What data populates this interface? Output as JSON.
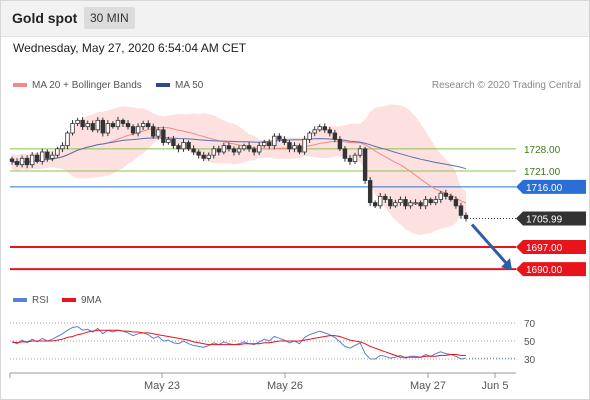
{
  "header": {
    "title": "Gold spot",
    "timeframe": "30 MIN",
    "timestamp": "Wednesday, May 27, 2020 6:54:04 AM CET"
  },
  "legend": {
    "ma20_label": "MA 20 + Bollinger Bands",
    "ma50_label": "MA 50",
    "rsi_label": "RSI",
    "ma9_label": "9MA",
    "copyright": "Research © 2020 Trading Central"
  },
  "colors": {
    "candle": "#333333",
    "bollinger_fill": "#fcd5d5",
    "ma20": "#f08a8a",
    "ma50": "#5b6fa8",
    "green_level": "#8bc34a",
    "blue_level": "#2b6fd6",
    "red_level": "#e8141b",
    "current": "#333333",
    "rsi": "#5b7fd6",
    "rsi_ma": "#e8141b",
    "arrow": "#2a5ea8"
  },
  "chart_data": {
    "type": "candlestick",
    "price_ylim": [
      1685,
      1745
    ],
    "x_ticks": [
      "May 23",
      "May 26",
      "May 27",
      "Jun 5"
    ],
    "levels": [
      {
        "value": 1728.0,
        "label": "1728.00",
        "kind": "resistance-green"
      },
      {
        "value": 1721.0,
        "label": "1721.00",
        "kind": "resistance-green"
      },
      {
        "value": 1716.0,
        "label": "1716.00",
        "kind": "pivot-blue"
      },
      {
        "value": 1697.0,
        "label": "1697.00",
        "kind": "target-red"
      },
      {
        "value": 1690.0,
        "label": "1690.00",
        "kind": "target-red"
      }
    ],
    "current_price": {
      "value": 1705.99,
      "label": "1705.99"
    },
    "forecast_arrow": {
      "from": 1705.99,
      "to": 1690.0
    },
    "close": [
      1724,
      1723,
      1725,
      1723,
      1726,
      1724,
      1727,
      1725,
      1726,
      1728,
      1729,
      1733,
      1736,
      1737,
      1735,
      1736,
      1734,
      1737,
      1733,
      1736,
      1735,
      1737,
      1736,
      1735,
      1733,
      1735,
      1736,
      1735,
      1732,
      1734,
      1730,
      1731,
      1729,
      1728,
      1730,
      1728,
      1727,
      1726,
      1725,
      1726,
      1728,
      1727,
      1729,
      1728,
      1727,
      1728,
      1729,
      1728,
      1727,
      1729,
      1730,
      1729,
      1732,
      1731,
      1730,
      1728,
      1729,
      1727,
      1731,
      1733,
      1734,
      1735,
      1734,
      1733,
      1731,
      1728,
      1725,
      1724,
      1726,
      1728,
      1718,
      1711,
      1710,
      1713,
      1712,
      1710,
      1711,
      1712,
      1710,
      1711,
      1711,
      1710,
      1712,
      1711,
      1712,
      1714,
      1713,
      1712,
      1710,
      1707,
      1706
    ],
    "rsi": {
      "ylim": [
        25,
        75
      ],
      "levels": [
        70,
        50,
        30
      ],
      "values": [
        49,
        47,
        51,
        48,
        52,
        49,
        53,
        50,
        52,
        55,
        58,
        62,
        65,
        66,
        62,
        63,
        60,
        64,
        58,
        62,
        60,
        62,
        61,
        59,
        56,
        58,
        59,
        57,
        53,
        55,
        50,
        51,
        48,
        47,
        50,
        47,
        45,
        44,
        43,
        45,
        48,
        46,
        49,
        47,
        46,
        47,
        49,
        47,
        46,
        49,
        52,
        50,
        55,
        53,
        51,
        48,
        50,
        47,
        54,
        57,
        59,
        61,
        59,
        57,
        54,
        49,
        44,
        42,
        45,
        48,
        36,
        30,
        30,
        34,
        33,
        31,
        32,
        34,
        31,
        33,
        33,
        32,
        35,
        33,
        36,
        38,
        36,
        35,
        33,
        30,
        31
      ],
      "ma9": [
        49,
        48,
        49,
        49,
        50,
        50,
        50,
        50,
        50,
        51,
        52,
        54,
        55,
        57,
        58,
        60,
        61,
        62,
        62,
        62,
        62,
        62,
        61,
        61,
        60,
        60,
        59,
        59,
        58,
        57,
        56,
        55,
        54,
        53,
        52,
        51,
        49,
        48,
        47,
        46,
        46,
        46,
        46,
        46,
        46,
        46,
        47,
        47,
        47,
        47,
        48,
        48,
        49,
        50,
        50,
        50,
        50,
        50,
        51,
        52,
        53,
        54,
        55,
        56,
        56,
        55,
        53,
        51,
        50,
        49,
        47,
        44,
        42,
        40,
        38,
        36,
        34,
        32,
        32,
        32,
        32,
        32,
        33,
        33,
        33,
        34,
        34,
        35,
        35,
        34,
        34
      ]
    }
  }
}
